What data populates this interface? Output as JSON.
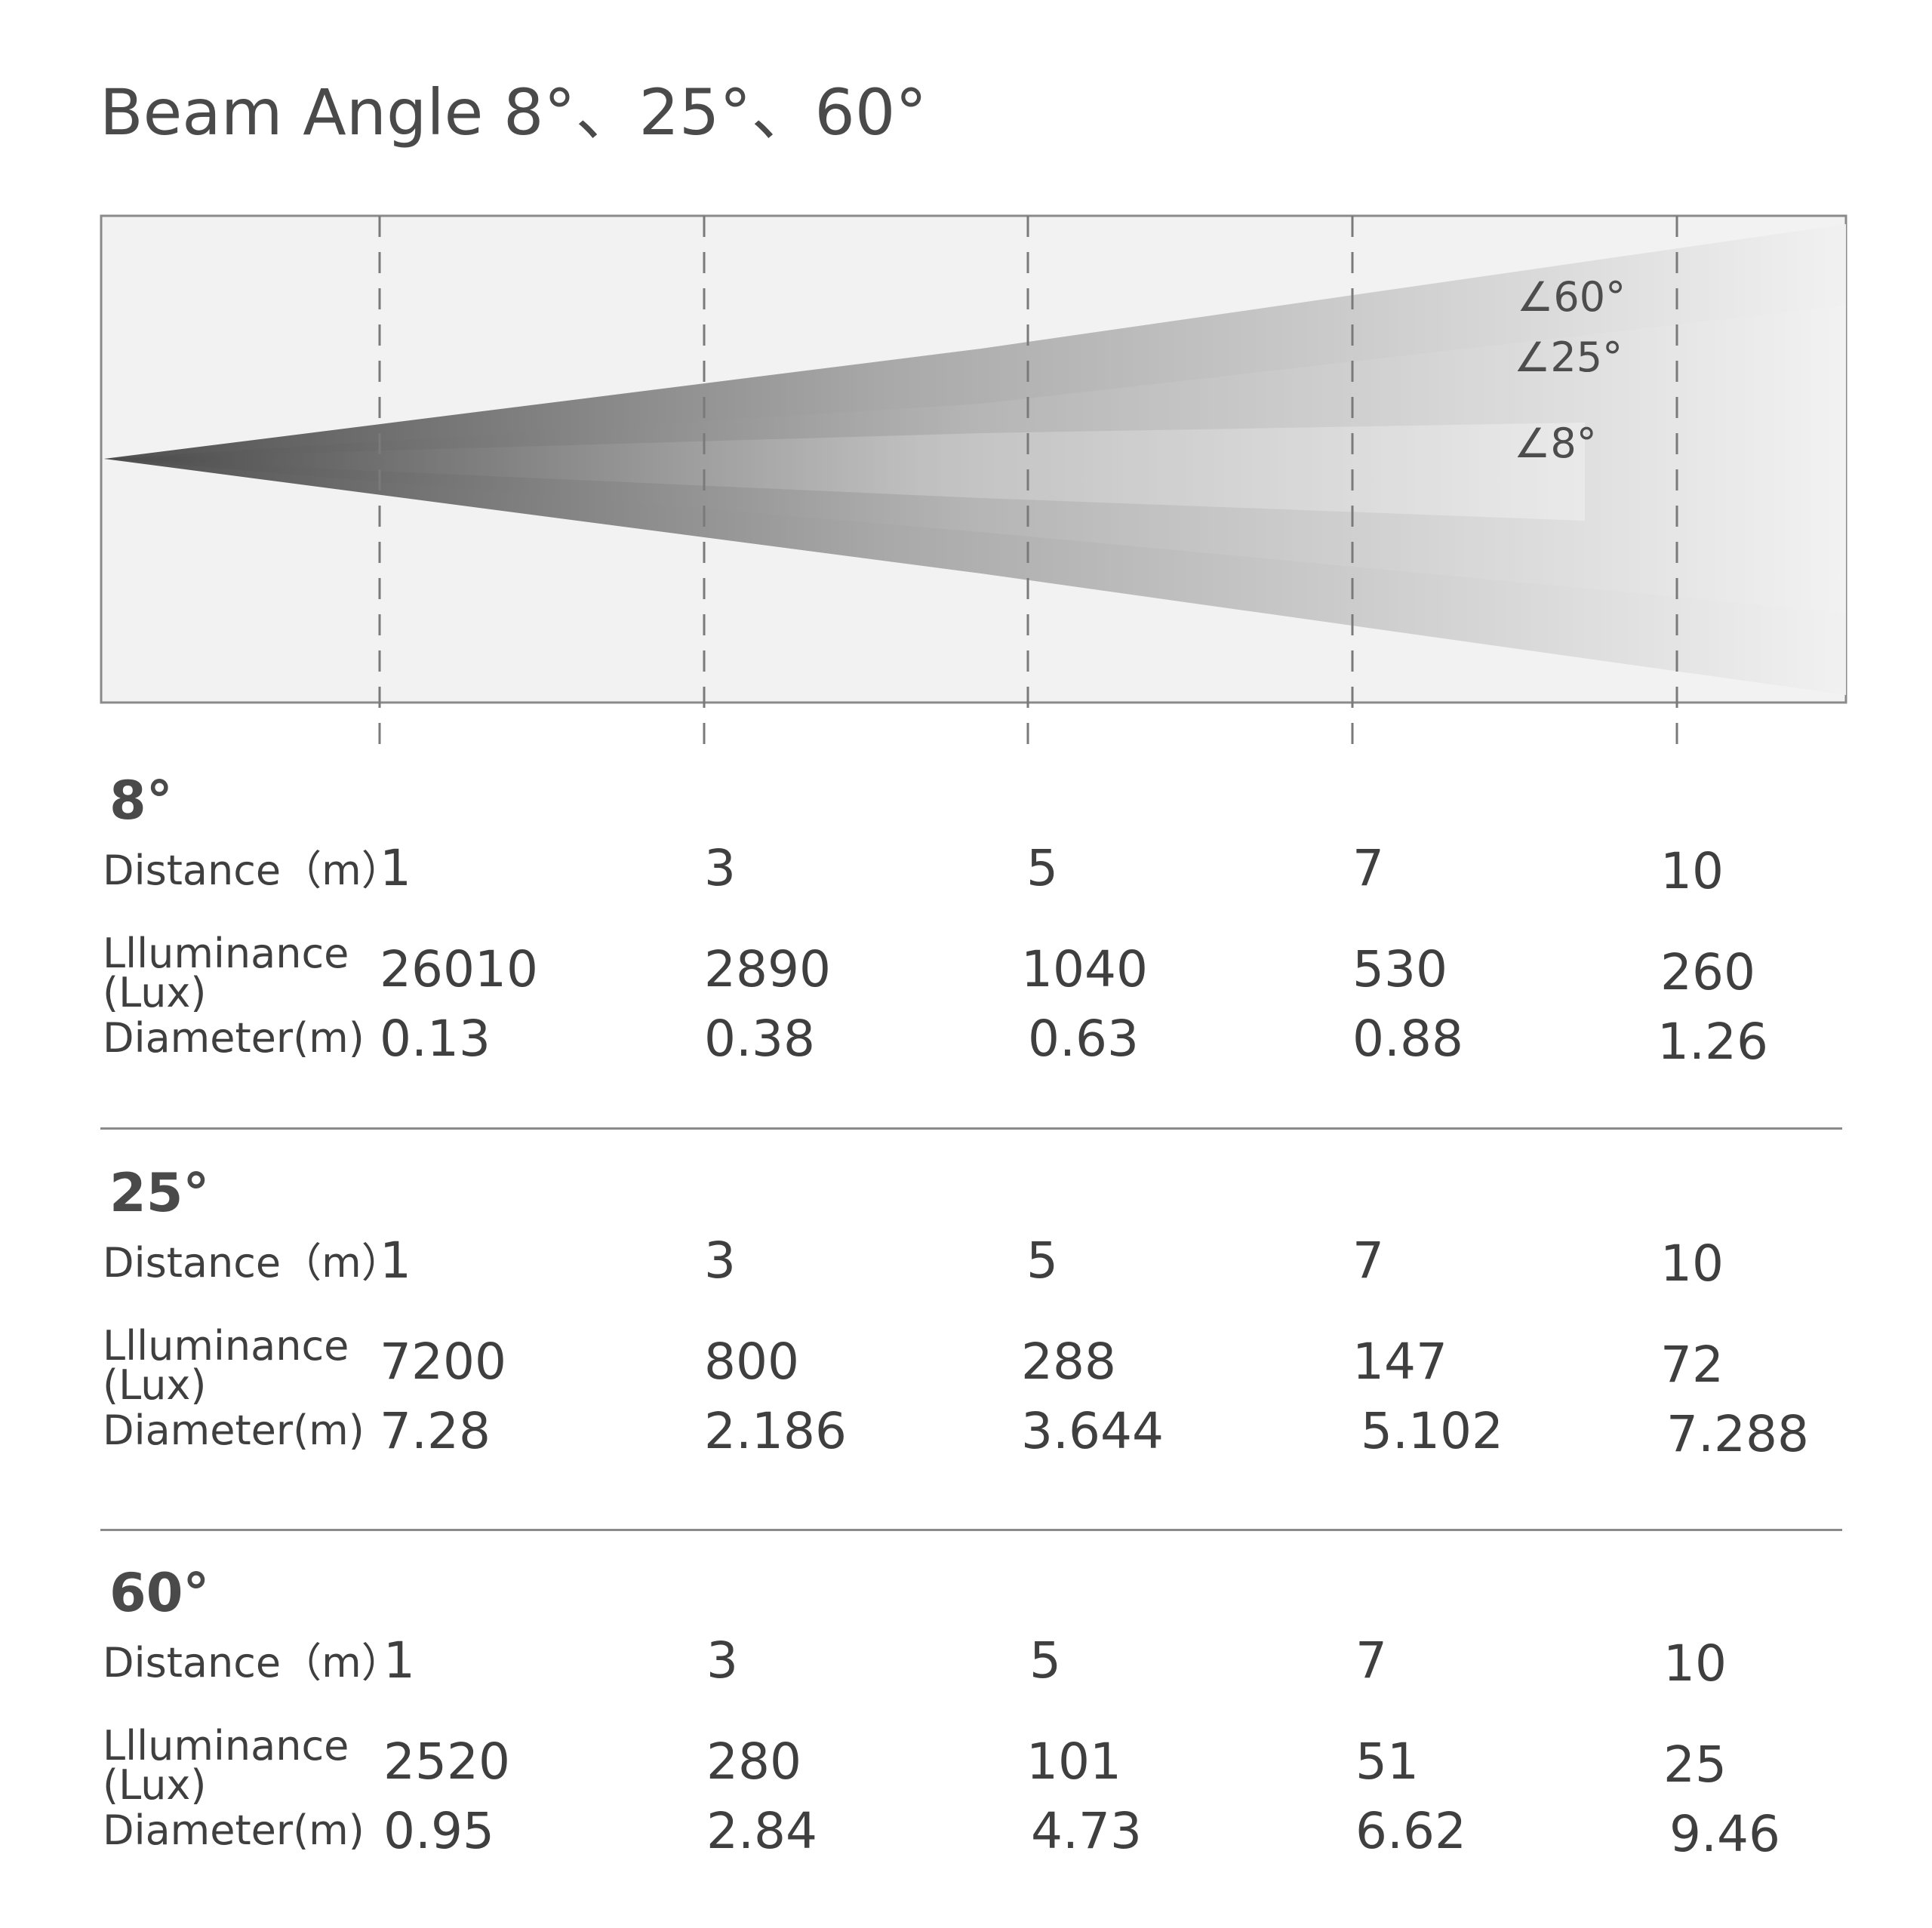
{
  "title": "Beam Angle 8°、25°、60°",
  "diagram": {
    "angle_labels": [
      "∠60°",
      "∠25°",
      "∠8°"
    ],
    "background_color": "#f2f2f2",
    "beam_dark_color": "#505050",
    "beam_light_color": "#e8e8e8"
  },
  "labels": {
    "distance": "Distance（m）",
    "illuminance_line1": "Llluminance",
    "illuminance_line2": "(Lux)",
    "diameter": "Diameter(m)"
  },
  "sections": [
    {
      "title": "8°",
      "distance": [
        "1",
        "3",
        "5",
        "7",
        "10"
      ],
      "illuminance": [
        "26010",
        "2890",
        "1040",
        "530",
        "260"
      ],
      "diameter": [
        "0.13",
        "0.38",
        "0.63",
        "0.88",
        "1.26"
      ]
    },
    {
      "title": "25°",
      "distance": [
        "1",
        "3",
        "5",
        "7",
        "10"
      ],
      "illuminance": [
        "7200",
        "800",
        "288",
        "147",
        "72"
      ],
      "diameter": [
        "7.28",
        "2.186",
        "3.644",
        "5.102",
        "7.288"
      ]
    },
    {
      "title": "60°",
      "distance": [
        "1",
        "3",
        "5",
        "7",
        "10"
      ],
      "illuminance": [
        "2520",
        "280",
        "101",
        "51",
        "25"
      ],
      "diameter": [
        "0.95",
        "2.84",
        "4.73",
        "6.62",
        "9.46"
      ]
    }
  ]
}
